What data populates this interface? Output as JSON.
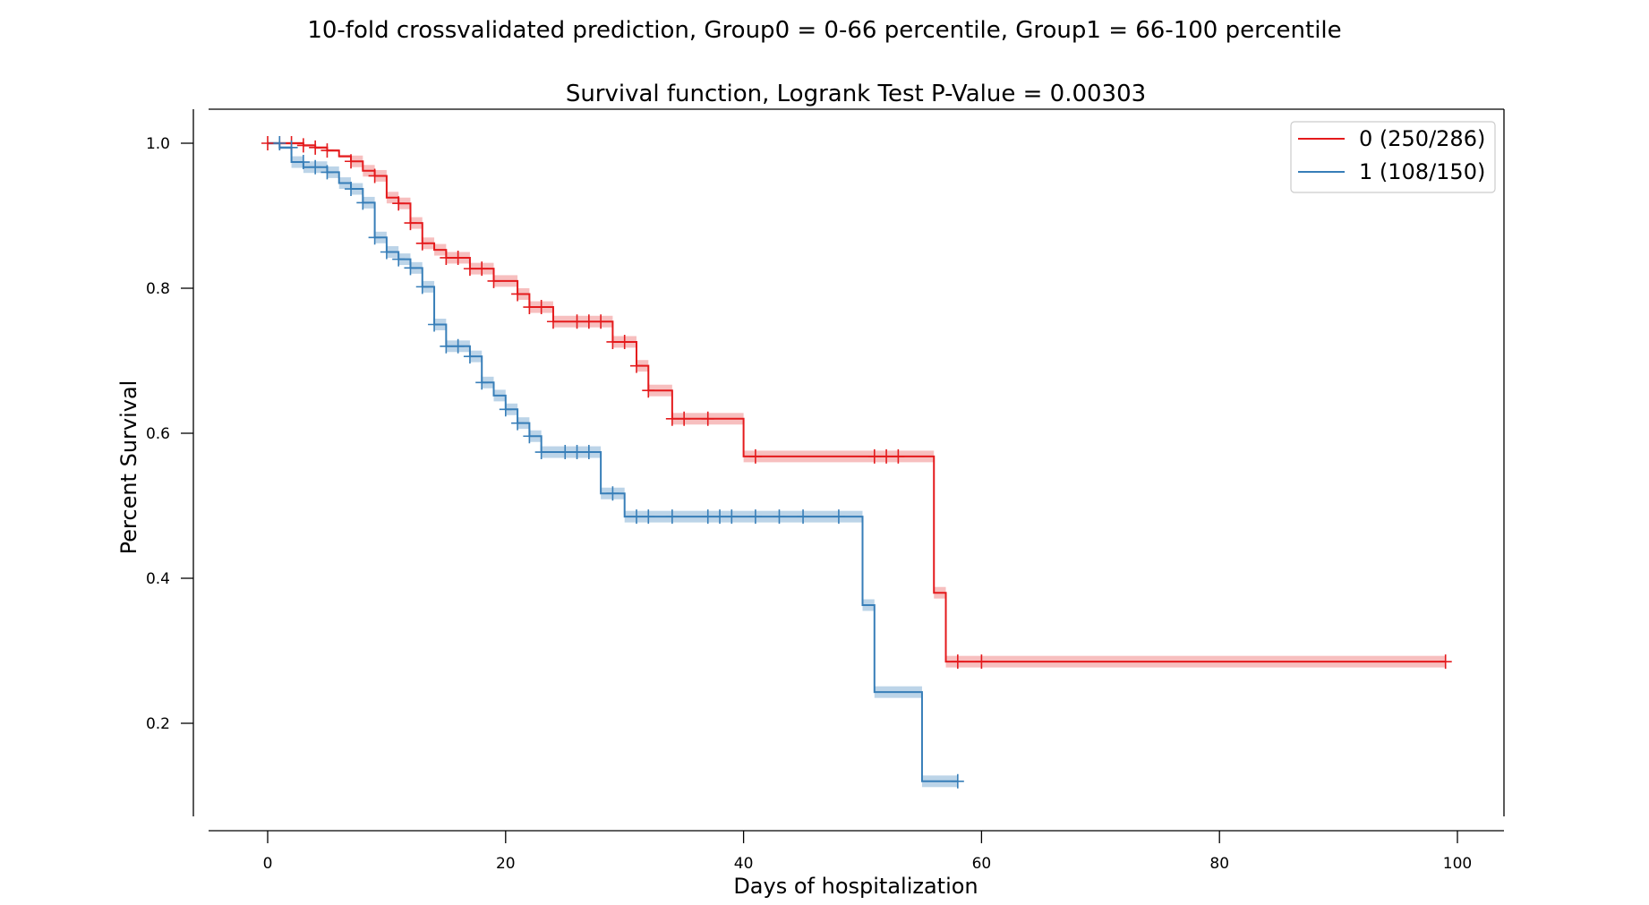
{
  "suptitle": "10-fold crossvalidated prediction, Group0 = 0-66 percentile, Group1 = 66-100 percentile",
  "chart_data": {
    "type": "line",
    "title": "Survival function, Logrank Test P-Value = 0.00303",
    "xlabel": "Days of hospitalization",
    "ylabel": "Percent Survival",
    "xlim": [
      -5,
      105
    ],
    "ylim": [
      0.06,
      1.05
    ],
    "xticks": [
      0,
      20,
      40,
      60,
      80,
      100
    ],
    "yticks": [
      0.2,
      0.4,
      0.6,
      0.8,
      1.0
    ],
    "xtick_labels": [
      "0",
      "20",
      "40",
      "60",
      "80",
      "100"
    ],
    "ytick_labels": [
      "0.2",
      "0.4",
      "0.6",
      "0.8",
      "1.0"
    ],
    "grid": false,
    "legend": {
      "placement": "top-right"
    },
    "series": [
      {
        "name": "0 (250/286)",
        "color": "#e41a1c",
        "band_color": "#f4a9aa",
        "steps": [
          [
            0,
            1.0
          ],
          [
            3,
            0.997
          ],
          [
            4,
            0.994
          ],
          [
            5,
            0.99
          ],
          [
            6,
            0.982
          ],
          [
            7,
            0.975
          ],
          [
            8,
            0.962
          ],
          [
            9,
            0.955
          ],
          [
            10,
            0.925
          ],
          [
            11,
            0.917
          ],
          [
            12,
            0.89
          ],
          [
            13,
            0.862
          ],
          [
            14,
            0.853
          ],
          [
            15,
            0.842
          ],
          [
            17,
            0.827
          ],
          [
            19,
            0.81
          ],
          [
            21,
            0.792
          ],
          [
            22,
            0.774
          ],
          [
            24,
            0.754
          ],
          [
            29,
            0.726
          ],
          [
            31,
            0.693
          ],
          [
            32,
            0.659
          ],
          [
            34,
            0.62
          ],
          [
            40,
            0.568
          ],
          [
            56,
            0.38
          ],
          [
            57,
            0.285
          ],
          [
            99,
            0.285
          ]
        ],
        "censor": [
          [
            0,
            1.0
          ],
          [
            1,
            1.0
          ],
          [
            2,
            1.0
          ],
          [
            3,
            0.997
          ],
          [
            4,
            0.994
          ],
          [
            5,
            0.99
          ],
          [
            7,
            0.975
          ],
          [
            9,
            0.955
          ],
          [
            11,
            0.917
          ],
          [
            12,
            0.89
          ],
          [
            13,
            0.862
          ],
          [
            15,
            0.842
          ],
          [
            16,
            0.842
          ],
          [
            17,
            0.827
          ],
          [
            18,
            0.827
          ],
          [
            19,
            0.81
          ],
          [
            21,
            0.792
          ],
          [
            22,
            0.774
          ],
          [
            23,
            0.774
          ],
          [
            24,
            0.754
          ],
          [
            26,
            0.754
          ],
          [
            27,
            0.754
          ],
          [
            28,
            0.754
          ],
          [
            29,
            0.726
          ],
          [
            30,
            0.726
          ],
          [
            31,
            0.693
          ],
          [
            32,
            0.659
          ],
          [
            34,
            0.62
          ],
          [
            35,
            0.62
          ],
          [
            37,
            0.62
          ],
          [
            41,
            0.568
          ],
          [
            51,
            0.568
          ],
          [
            52,
            0.568
          ],
          [
            53,
            0.568
          ],
          [
            58,
            0.285
          ],
          [
            60,
            0.285
          ],
          [
            99,
            0.285
          ]
        ]
      },
      {
        "name": "1 (108/150)",
        "color": "#377eb8",
        "band_color": "#a6c5e0",
        "steps": [
          [
            0,
            1.0
          ],
          [
            1,
            0.994
          ],
          [
            2,
            0.974
          ],
          [
            3,
            0.967
          ],
          [
            5,
            0.96
          ],
          [
            6,
            0.945
          ],
          [
            7,
            0.937
          ],
          [
            8,
            0.918
          ],
          [
            9,
            0.87
          ],
          [
            10,
            0.85
          ],
          [
            11,
            0.84
          ],
          [
            12,
            0.828
          ],
          [
            13,
            0.802
          ],
          [
            14,
            0.75
          ],
          [
            15,
            0.72
          ],
          [
            17,
            0.706
          ],
          [
            18,
            0.67
          ],
          [
            19,
            0.652
          ],
          [
            20,
            0.633
          ],
          [
            21,
            0.614
          ],
          [
            22,
            0.596
          ],
          [
            23,
            0.574
          ],
          [
            28,
            0.517
          ],
          [
            30,
            0.485
          ],
          [
            50,
            0.363
          ],
          [
            51,
            0.243
          ],
          [
            55,
            0.12
          ],
          [
            58,
            0.12
          ]
        ],
        "censor": [
          [
            1,
            1.0
          ],
          [
            2,
            0.994
          ],
          [
            3,
            0.974
          ],
          [
            4,
            0.967
          ],
          [
            5,
            0.96
          ],
          [
            7,
            0.937
          ],
          [
            8,
            0.918
          ],
          [
            9,
            0.87
          ],
          [
            10,
            0.85
          ],
          [
            11,
            0.84
          ],
          [
            12,
            0.828
          ],
          [
            13,
            0.802
          ],
          [
            14,
            0.75
          ],
          [
            15,
            0.72
          ],
          [
            16,
            0.72
          ],
          [
            17,
            0.706
          ],
          [
            18,
            0.67
          ],
          [
            20,
            0.633
          ],
          [
            21,
            0.614
          ],
          [
            22,
            0.596
          ],
          [
            23,
            0.574
          ],
          [
            25,
            0.574
          ],
          [
            26,
            0.574
          ],
          [
            27,
            0.574
          ],
          [
            29,
            0.517
          ],
          [
            31,
            0.485
          ],
          [
            32,
            0.485
          ],
          [
            34,
            0.485
          ],
          [
            37,
            0.485
          ],
          [
            38,
            0.485
          ],
          [
            39,
            0.485
          ],
          [
            41,
            0.485
          ],
          [
            43,
            0.485
          ],
          [
            45,
            0.485
          ],
          [
            48,
            0.485
          ],
          [
            58,
            0.12
          ]
        ]
      }
    ]
  }
}
